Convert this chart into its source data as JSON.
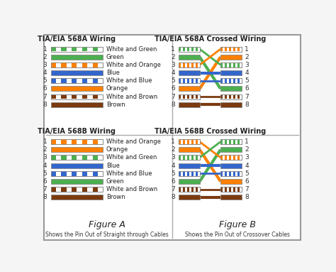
{
  "bg_color": "#f5f5f5",
  "wire_color_map": {
    "white_green": "#4caf50",
    "green": "#4caf50",
    "white_orange": "#ff8000",
    "blue": "#3366cc",
    "white_blue": "#3366cc",
    "orange": "#ff8000",
    "white_brown": "#7b3a10",
    "brown": "#7b3a10"
  },
  "568A": [
    "white_green",
    "green",
    "white_orange",
    "blue",
    "white_blue",
    "orange",
    "white_brown",
    "brown"
  ],
  "568B": [
    "white_orange",
    "orange",
    "white_green",
    "blue",
    "white_blue",
    "green",
    "white_brown",
    "brown"
  ],
  "labels_568A": [
    "White and Green",
    "Green",
    "White and Orange",
    "Blue",
    "White and Blue",
    "Orange",
    "White and Brown",
    "Brown"
  ],
  "labels_568B": [
    "White and Orange",
    "Orange",
    "White and Green",
    "Blue",
    "White and Blue",
    "Green",
    "White and Brown",
    "Brown"
  ],
  "cross_map_A": [
    2,
    5,
    0,
    3,
    4,
    1,
    6,
    7
  ],
  "cross_map_B": [
    2,
    5,
    0,
    3,
    4,
    1,
    6,
    7
  ],
  "section_titles": [
    "TIA/EIA 568A Wiring",
    "TIA/EIA 568A Crossed Wiring",
    "TIA/EIA 568B Wiring",
    "TIA/EIA 568B Crossed Wiring"
  ],
  "figure_a": "Figure A",
  "figure_b": "Figure B",
  "caption_a": "Shows the Pin Out of Straight through Cables",
  "caption_b": "Shows the Pin Out of Crossover Cables"
}
